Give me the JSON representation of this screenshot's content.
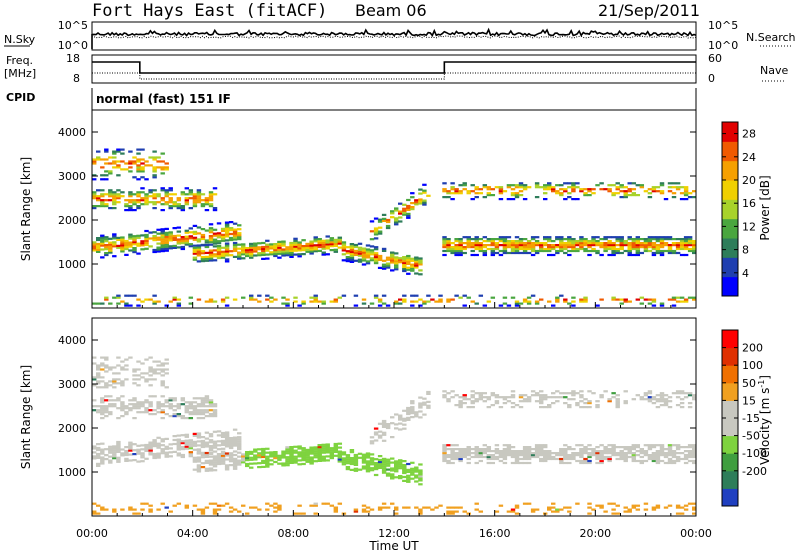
{
  "header": {
    "title": "Fort Hays East (fitACF)",
    "beam": "Beam 06",
    "date": "21/Sep/2011"
  },
  "top_panels": {
    "nsky_label": "N.Sky",
    "nsearch_label": "N.Search",
    "nsky_ticks": [
      "10^5",
      "10^0"
    ],
    "nsearch_ticks": [
      "10^5",
      "10^0"
    ],
    "freq_label": "Freq.",
    "freq_unit": "[MHz]",
    "freq_ticks": [
      "18",
      "8"
    ],
    "nave_label": "Nave",
    "nave_ticks": [
      "60",
      "0"
    ],
    "cpid_label": "CPID",
    "cpid_value": "normal (fast) 151 IF"
  },
  "colors": {
    "power": [
      "#0000ff",
      "#1f3fb0",
      "#2e7d5a",
      "#4aa63f",
      "#a8d22a",
      "#f0d000",
      "#f5a000",
      "#f05a00",
      "#e00000"
    ],
    "velocity": [
      "#2040c0",
      "#2e7d5a",
      "#3f9e3f",
      "#7ed33f",
      "#c8c8c0",
      "#c8c8c0",
      "#f0a020",
      "#f07000",
      "#e03000",
      "#ff0000"
    ]
  },
  "chart_data": [
    {
      "type": "heatmap",
      "name": "power",
      "ylabel": "Slant Range [km]",
      "xlabel": "Time UT",
      "x_ticks": [
        "00:00",
        "04:00",
        "08:00",
        "12:00",
        "16:00",
        "20:00",
        "00:00"
      ],
      "y_ticks": [
        1000,
        2000,
        3000,
        4000
      ],
      "ylim": [
        0,
        4500
      ],
      "colorbar": {
        "label": "Power [dB]",
        "ticks": [
          4,
          8,
          12,
          16,
          20,
          24,
          28
        ],
        "range": [
          0,
          30
        ]
      }
    },
    {
      "type": "heatmap",
      "name": "velocity",
      "ylabel": "Slant Range [km]",
      "xlabel": "Time UT",
      "x_ticks": [
        "00:00",
        "04:00",
        "08:00",
        "12:00",
        "16:00",
        "20:00",
        "00:00"
      ],
      "y_ticks": [
        1000,
        2000,
        3000,
        4000
      ],
      "ylim": [
        0,
        4500
      ],
      "colorbar": {
        "label": "Velocity [m s",
        "label_sup": "-1",
        "label_end": "]",
        "ticks": [
          200,
          100,
          50,
          15,
          -15,
          -50,
          -100,
          -200
        ]
      }
    }
  ]
}
